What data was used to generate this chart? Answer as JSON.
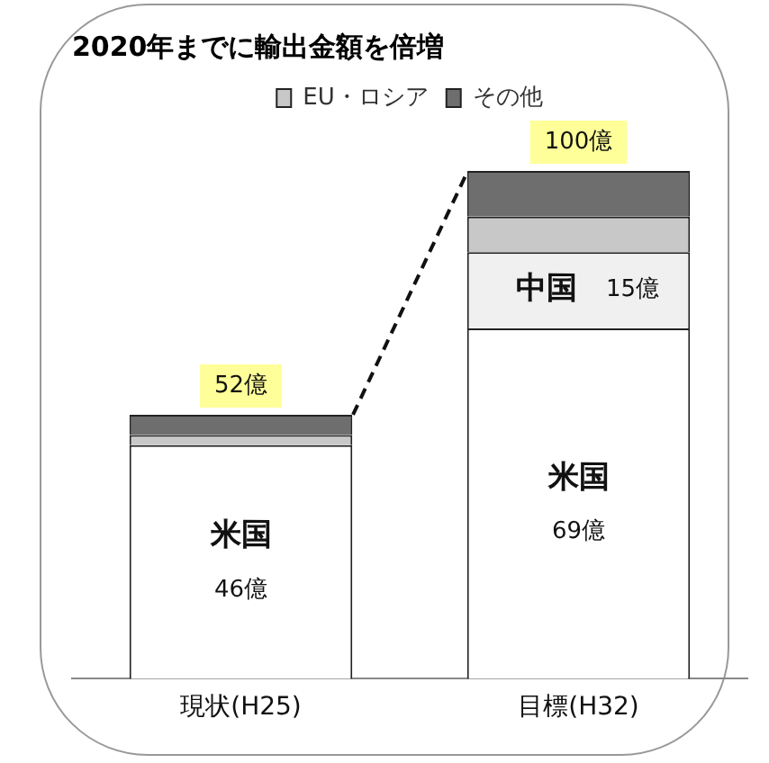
{
  "chart_data": {
    "type": "bar",
    "title": "2020年までに輸出金額を倍増",
    "categories": [
      "現状(H25)",
      "目標(H32)"
    ],
    "stacked": true,
    "legend": "top",
    "series": [
      {
        "name": "米国",
        "color": "#ffffff",
        "values": [
          46,
          69
        ],
        "value_labels": [
          "46億",
          "69億"
        ]
      },
      {
        "name": "中国",
        "color": "#f0f0f0",
        "values": [
          null,
          15
        ],
        "value_labels": [
          null,
          "15億"
        ]
      },
      {
        "name": "EU・ロシア",
        "color": "#c8c8c8",
        "values": [
          2,
          7
        ]
      },
      {
        "name": "その他",
        "color": "#6e6e6e",
        "values": [
          4,
          9
        ]
      }
    ],
    "totals": [
      "52億",
      "100億"
    ]
  }
}
